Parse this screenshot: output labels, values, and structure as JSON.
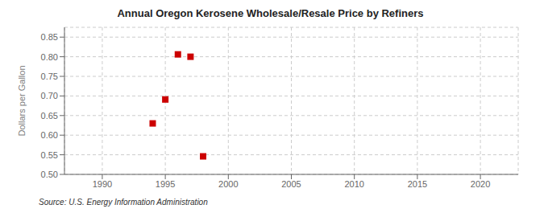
{
  "chart_data": {
    "type": "scatter",
    "title": "Annual Oregon Kerosene Wholesale/Resale Price by Refiners",
    "ylabel": "Dollars per Gallon",
    "annotation": "Source: U.S. Energy Information Administration",
    "x": [
      1994,
      1995,
      1996,
      1997,
      1998
    ],
    "values": [
      0.63,
      0.691,
      0.806,
      0.8,
      0.546
    ],
    "color": "#cc0000",
    "marker": "square",
    "xlim": [
      1987,
      2023
    ],
    "ylim": [
      0.5,
      0.875
    ],
    "xticks": [
      1990,
      1995,
      2000,
      2005,
      2010,
      2015,
      2020
    ],
    "yticks": [
      {
        "value": 0.5,
        "label": "0.50"
      },
      0.55,
      {
        "value": 0.6,
        "label": "0.60"
      },
      0.65,
      {
        "value": 0.7,
        "label": "0.70"
      },
      0.75,
      {
        "value": 0.8,
        "label": "0.80"
      },
      0.85
    ],
    "grid": true
  }
}
